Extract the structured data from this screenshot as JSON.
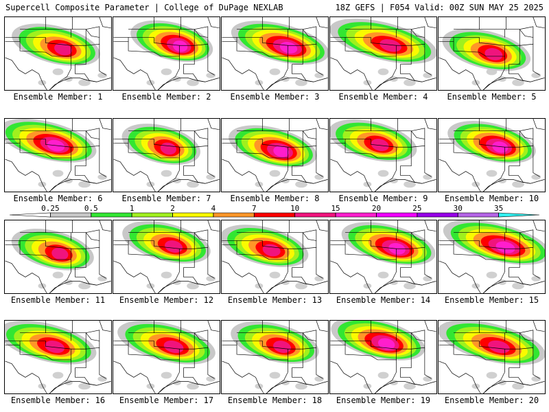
{
  "header": {
    "title": "Supercell Composite Parameter | College of DuPage NEXLAB",
    "run_info": "18Z GEFS | F054 Valid: 00Z SUN MAY 25 2025"
  },
  "members": [
    {
      "label": "Ensemble Member: 1",
      "intensity": 0.85,
      "center": [
        0.48,
        0.38
      ],
      "spread": 0.45
    },
    {
      "label": "Ensemble Member: 2",
      "intensity": 0.9,
      "center": [
        0.55,
        0.33
      ],
      "spread": 0.42
    },
    {
      "label": "Ensemble Member: 3",
      "intensity": 0.92,
      "center": [
        0.55,
        0.35
      ],
      "spread": 0.5
    },
    {
      "label": "Ensemble Member: 4",
      "intensity": 0.8,
      "center": [
        0.5,
        0.33
      ],
      "spread": 0.55
    },
    {
      "label": "Ensemble Member: 5",
      "intensity": 0.7,
      "center": [
        0.45,
        0.45
      ],
      "spread": 0.45
    },
    {
      "label": "Ensemble Member: 6",
      "intensity": 0.95,
      "center": [
        0.4,
        0.3
      ],
      "spread": 0.5
    },
    {
      "label": "Ensemble Member: 7",
      "intensity": 0.85,
      "center": [
        0.45,
        0.35
      ],
      "spread": 0.4
    },
    {
      "label": "Ensemble Member: 8",
      "intensity": 0.95,
      "center": [
        0.48,
        0.38
      ],
      "spread": 0.45
    },
    {
      "label": "Ensemble Member: 9",
      "intensity": 0.85,
      "center": [
        0.4,
        0.3
      ],
      "spread": 0.45
    },
    {
      "label": "Ensemble Member: 10",
      "intensity": 0.9,
      "center": [
        0.5,
        0.32
      ],
      "spread": 0.45
    },
    {
      "label": "Ensemble Member: 11",
      "intensity": 0.7,
      "center": [
        0.45,
        0.4
      ],
      "spread": 0.42
    },
    {
      "label": "Ensemble Member: 12",
      "intensity": 0.75,
      "center": [
        0.5,
        0.3
      ],
      "spread": 0.45
    },
    {
      "label": "Ensemble Member: 13",
      "intensity": 0.7,
      "center": [
        0.4,
        0.35
      ],
      "spread": 0.45
    },
    {
      "label": "Ensemble Member: 14",
      "intensity": 0.95,
      "center": [
        0.55,
        0.32
      ],
      "spread": 0.48
    },
    {
      "label": "Ensemble Member: 15",
      "intensity": 1.0,
      "center": [
        0.55,
        0.3
      ],
      "spread": 0.55
    },
    {
      "label": "Ensemble Member: 16",
      "intensity": 0.8,
      "center": [
        0.4,
        0.3
      ],
      "spread": 0.5
    },
    {
      "label": "Ensemble Member: 17",
      "intensity": 0.85,
      "center": [
        0.5,
        0.3
      ],
      "spread": 0.5
    },
    {
      "label": "Ensemble Member: 18",
      "intensity": 0.85,
      "center": [
        0.5,
        0.3
      ],
      "spread": 0.45
    },
    {
      "label": "Ensemble Member: 19",
      "intensity": 0.9,
      "center": [
        0.45,
        0.25
      ],
      "spread": 0.48
    },
    {
      "label": "Ensemble Member: 20",
      "intensity": 0.75,
      "center": [
        0.5,
        0.3
      ],
      "spread": 0.55
    }
  ],
  "colorbar": {
    "levels": [
      {
        "label": "0.25",
        "color": "#ffffff"
      },
      {
        "label": "0.5",
        "color": "#c8c8c8"
      },
      {
        "label": "1",
        "color": "#32e632"
      },
      {
        "label": "2",
        "color": "#a0f01e"
      },
      {
        "label": "4",
        "color": "#fafa00"
      },
      {
        "label": "7",
        "color": "#ff9628"
      },
      {
        "label": "10",
        "color": "#ff0000"
      },
      {
        "label": "15",
        "color": "#f0147d"
      },
      {
        "label": "20",
        "color": "#ff1ecd"
      },
      {
        "label": "25",
        "color": "#f000ff"
      },
      {
        "label": "30",
        "color": "#9600e6"
      },
      {
        "label": "35",
        "color": "#b464e6"
      },
      {
        "label": "",
        "color": "#32f0f0"
      }
    ]
  }
}
